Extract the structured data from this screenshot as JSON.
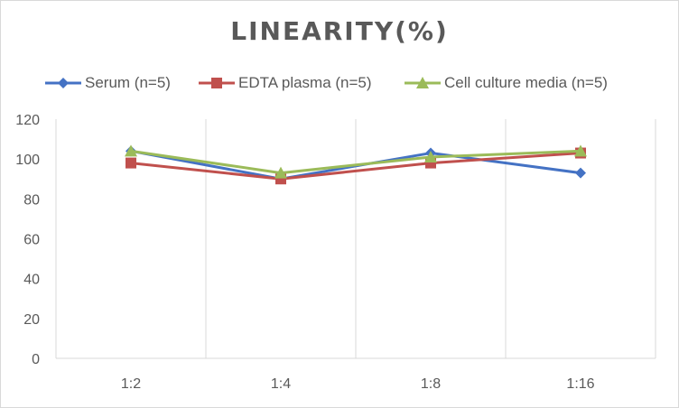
{
  "chart_data": {
    "type": "line",
    "title": "LINEARITY(%)",
    "xlabel": "",
    "ylabel": "",
    "categories": [
      "1:2",
      "1:4",
      "1:8",
      "1:16"
    ],
    "ylim": [
      0,
      120
    ],
    "yticks": [
      0,
      20,
      40,
      60,
      80,
      100,
      120
    ],
    "grid": "vertical",
    "legend_position": "top",
    "series": [
      {
        "name": "Serum (n=5)",
        "values": [
          104,
          90,
          103,
          93
        ],
        "color": "#4472c4",
        "marker": "diamond"
      },
      {
        "name": "EDTA plasma (n=5)",
        "values": [
          98,
          90,
          98,
          103
        ],
        "color": "#c0504d",
        "marker": "square"
      },
      {
        "name": "Cell culture media (n=5)",
        "values": [
          104,
          93,
          101,
          104
        ],
        "color": "#9bbb59",
        "marker": "triangle"
      }
    ]
  }
}
